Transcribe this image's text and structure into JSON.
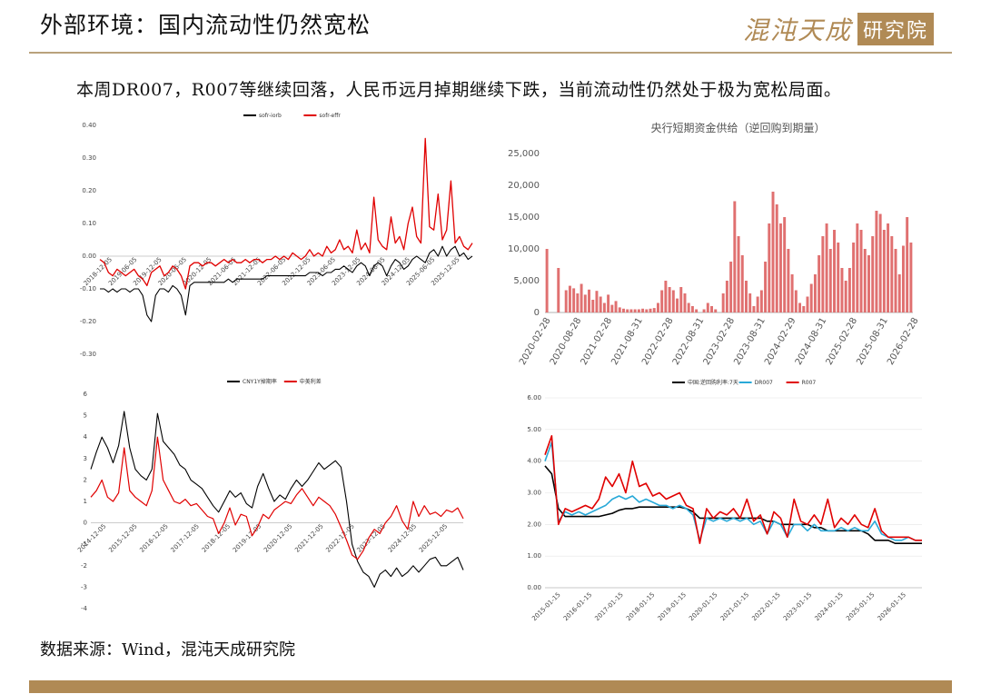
{
  "header": {
    "title": "外部环境：国内流动性仍然宽松",
    "logo_text": "混沌天成",
    "logo_box": "研究院"
  },
  "headline": "本周DR007，R007等继续回落，人民币远月掉期继续下跌，当前流动性仍然处于极为宽松局面。",
  "footnote": "数据来源：Wind，混沌天成研究院",
  "colors": {
    "accent": "#b08a55",
    "red": "#e00000",
    "black": "#000000",
    "cyan": "#29a9d8",
    "bar": "#e07070"
  },
  "chart_data": [
    {
      "type": "line",
      "legend": [
        "sofr-iorb",
        "sofr-effr"
      ],
      "yticks": [
        "0.40",
        "0.30",
        "0.20",
        "0.10",
        "0.00",
        "-0.10",
        "-0.20",
        "-0.30"
      ],
      "ylim": [
        -0.3,
        0.4
      ],
      "xticks": [
        "2018-12-05",
        "2019-06-05",
        "2019-12-05",
        "2020-06-05",
        "2020-12-05",
        "2021-06-05",
        "2021-12-05",
        "2022-06-05",
        "2022-12-05",
        "2023-06-05",
        "2023-12-05",
        "2024-06-05",
        "2024-12-05",
        "2025-06-05",
        "2025-12-05"
      ],
      "series": [
        {
          "name": "sofr-iorb",
          "values": [
            -0.1,
            -0.1,
            -0.11,
            -0.1,
            -0.11,
            -0.1,
            -0.1,
            -0.11,
            -0.1,
            -0.1,
            -0.12,
            -0.18,
            -0.2,
            -0.12,
            -0.1,
            -0.1,
            -0.11,
            -0.09,
            -0.1,
            -0.12,
            -0.18,
            -0.09,
            -0.08,
            -0.08,
            -0.08,
            -0.08,
            -0.08,
            -0.08,
            -0.08,
            -0.08,
            -0.07,
            -0.08,
            -0.07,
            -0.07,
            -0.07,
            -0.07,
            -0.07,
            -0.07,
            -0.07,
            -0.06,
            -0.06,
            -0.06,
            -0.06,
            -0.06,
            -0.06,
            -0.06,
            -0.06,
            -0.06,
            -0.06,
            -0.05,
            -0.05,
            -0.05,
            -0.06,
            -0.05,
            -0.05,
            -0.04,
            -0.04,
            -0.03,
            -0.04,
            -0.05,
            -0.03,
            -0.02,
            -0.03,
            -0.06,
            -0.03,
            -0.02,
            -0.03,
            -0.06,
            -0.03,
            -0.01,
            -0.02,
            -0.04,
            -0.03,
            -0.01,
            0.0,
            -0.01,
            -0.02,
            0.01,
            0.02,
            0.0,
            0.03,
            0.0,
            0.02,
            0.03,
            0.0,
            0.01,
            -0.01,
            0.0
          ]
        },
        {
          "name": "sofr-effr",
          "values": [
            -0.01,
            -0.02,
            -0.05,
            -0.06,
            -0.04,
            -0.05,
            -0.06,
            -0.05,
            -0.04,
            -0.06,
            -0.07,
            -0.09,
            -0.05,
            -0.04,
            -0.03,
            -0.06,
            -0.05,
            -0.03,
            -0.04,
            -0.06,
            -0.1,
            -0.03,
            -0.02,
            -0.02,
            -0.03,
            -0.02,
            -0.02,
            -0.03,
            -0.02,
            -0.01,
            -0.02,
            -0.01,
            -0.02,
            -0.02,
            -0.01,
            -0.02,
            -0.01,
            -0.01,
            -0.02,
            -0.01,
            -0.01,
            0.0,
            -0.01,
            0.0,
            -0.01,
            0.01,
            0.0,
            -0.01,
            0.0,
            0.02,
            0.0,
            0.01,
            0.0,
            0.03,
            0.01,
            0.02,
            0.05,
            0.02,
            0.03,
            0.01,
            0.08,
            0.02,
            0.04,
            0.01,
            0.18,
            0.05,
            0.03,
            0.02,
            0.12,
            0.04,
            0.06,
            0.02,
            0.1,
            0.15,
            0.06,
            0.04,
            0.36,
            0.09,
            0.08,
            0.19,
            0.05,
            0.08,
            0.23,
            0.04,
            0.06,
            0.03,
            0.02,
            0.04
          ]
        }
      ]
    },
    {
      "type": "bar",
      "title": "央行短期资金供给（逆回购到期量）",
      "yticks": [
        "25,000",
        "20,000",
        "15,000",
        "10,000",
        "5,000",
        "0"
      ],
      "ylim": [
        0,
        25000
      ],
      "xticks": [
        "2020-02-28",
        "2020-08-28",
        "2021-02-28",
        "2021-08-31",
        "2022-02-28",
        "2022-08-31",
        "2023-02-28",
        "2023-08-31",
        "2024-02-29",
        "2024-08-31",
        "2025-02-28",
        "2025-08-31",
        "2026-02-28"
      ],
      "values": [
        10000,
        0,
        0,
        7000,
        0,
        3500,
        4200,
        3800,
        3000,
        4500,
        2800,
        3600,
        2000,
        3400,
        2500,
        1500,
        2800,
        1200,
        1800,
        800,
        600,
        500,
        500,
        500,
        500,
        600,
        500,
        600,
        700,
        1500,
        3500,
        5000,
        4000,
        3500,
        2200,
        4000,
        3000,
        1500,
        1000,
        500,
        0,
        500,
        1500,
        1000,
        500,
        0,
        3000,
        5000,
        8000,
        17500,
        12000,
        9000,
        5000,
        3000,
        1000,
        2500,
        3500,
        8000,
        14000,
        19000,
        17000,
        14000,
        15000,
        10000,
        6000,
        3500,
        1500,
        1000,
        2500,
        4500,
        6000,
        9000,
        12000,
        14000,
        10000,
        13000,
        11000,
        7000,
        5000,
        7000,
        11000,
        14000,
        13000,
        10000,
        9000,
        12000,
        16000,
        15500,
        13000,
        14000,
        12000,
        10000,
        6000,
        10500,
        15000,
        11000
      ]
    },
    {
      "type": "line",
      "legend": [
        "CNY1Y掉期率",
        "中美利差"
      ],
      "yticks": [
        "6",
        "5",
        "4",
        "3",
        "2",
        "1",
        "0",
        "-1",
        "-2",
        "-3",
        "-4"
      ],
      "ylim": [
        -4,
        6
      ],
      "xticks": [
        "2014-12-05",
        "2015-12-05",
        "2016-12-05",
        "2017-12-05",
        "2018-12-05",
        "2019-12-05",
        "2020-12-05",
        "2021-12-05",
        "2022-12-05",
        "2023-12-05",
        "2024-12-05",
        "2025-12-05"
      ],
      "series": [
        {
          "name": "CNY1Y掉期率",
          "values": [
            2.5,
            3.3,
            4.0,
            3.5,
            2.8,
            3.6,
            5.2,
            3.5,
            2.5,
            2.2,
            2.0,
            2.5,
            5.1,
            3.8,
            3.5,
            3.2,
            2.7,
            2.5,
            2.0,
            1.8,
            1.6,
            1.2,
            0.8,
            0.5,
            1.0,
            1.5,
            1.2,
            1.4,
            0.9,
            0.7,
            1.7,
            2.3,
            1.6,
            1.0,
            1.3,
            1.1,
            1.6,
            2.0,
            1.7,
            2.0,
            2.4,
            2.8,
            2.5,
            2.7,
            2.9,
            2.6,
            1.0,
            -1.0,
            -1.8,
            -2.3,
            -2.5,
            -3.0,
            -2.4,
            -2.2,
            -2.5,
            -2.1,
            -2.5,
            -2.3,
            -2.0,
            -2.3,
            -2.0,
            -1.7,
            -1.6,
            -2.0,
            -2.0,
            -1.8,
            -1.6,
            -2.2
          ]
        },
        {
          "name": "中美利差",
          "values": [
            1.2,
            1.5,
            2.0,
            1.2,
            1.0,
            1.4,
            3.5,
            1.5,
            1.2,
            1.0,
            0.8,
            1.5,
            4.0,
            2.0,
            1.5,
            1.0,
            0.9,
            1.1,
            0.8,
            0.9,
            0.6,
            0.3,
            0.2,
            -0.5,
            0.0,
            0.7,
            -0.1,
            0.4,
            0.3,
            -0.6,
            -0.2,
            0.4,
            0.2,
            0.6,
            0.8,
            1.0,
            0.9,
            1.3,
            1.6,
            1.2,
            0.8,
            1.2,
            1.0,
            0.8,
            0.4,
            -0.2,
            -0.8,
            -1.5,
            -1.7,
            -1.3,
            -0.7,
            -0.3,
            -0.5,
            0.0,
            0.3,
            0.8,
            0.1,
            -0.3,
            1.0,
            0.3,
            0.8,
            0.4,
            0.5,
            0.3,
            0.6,
            0.5,
            0.7,
            0.2
          ]
        }
      ]
    },
    {
      "type": "line",
      "legend": [
        "中国:逆回购利率:7天",
        "DR007",
        "R007"
      ],
      "yticks": [
        "6.00",
        "5.00",
        "4.00",
        "3.00",
        "2.00",
        "1.00",
        "0.00"
      ],
      "ylim": [
        0,
        6
      ],
      "xticks": [
        "2015-01-15",
        "2016-01-15",
        "2017-01-15",
        "2018-01-15",
        "2019-01-15",
        "2020-01-15",
        "2021-01-15",
        "2022-01-15",
        "2023-01-15",
        "2024-01-15",
        "2025-01-15",
        "2026-01-15"
      ],
      "series": [
        {
          "name": "中国:逆回购利率:7天",
          "values": [
            3.85,
            3.6,
            2.5,
            2.25,
            2.25,
            2.25,
            2.25,
            2.25,
            2.25,
            2.3,
            2.35,
            2.45,
            2.5,
            2.5,
            2.55,
            2.55,
            2.55,
            2.55,
            2.55,
            2.55,
            2.55,
            2.5,
            2.4,
            2.2,
            2.2,
            2.2,
            2.2,
            2.2,
            2.2,
            2.2,
            2.2,
            2.2,
            2.2,
            2.1,
            2.1,
            2.0,
            2.0,
            2.0,
            2.0,
            2.0,
            1.9,
            1.9,
            1.8,
            1.8,
            1.8,
            1.8,
            1.8,
            1.8,
            1.7,
            1.5,
            1.5,
            1.5,
            1.4,
            1.4,
            1.4,
            1.4,
            1.4
          ]
        },
        {
          "name": "DR007",
          "values": [
            4.0,
            4.6,
            2.1,
            2.4,
            2.3,
            2.4,
            2.3,
            2.4,
            2.5,
            2.6,
            2.8,
            2.9,
            2.8,
            2.9,
            2.7,
            2.8,
            2.7,
            2.6,
            2.6,
            2.5,
            2.6,
            2.5,
            2.3,
            1.5,
            2.2,
            2.1,
            2.2,
            2.1,
            2.2,
            2.1,
            2.2,
            2.0,
            2.1,
            1.7,
            2.1,
            2.0,
            1.6,
            2.0,
            2.0,
            1.8,
            2.0,
            1.8,
            1.8,
            1.8,
            1.9,
            1.8,
            1.9,
            1.8,
            1.8,
            2.1,
            1.7,
            1.6,
            1.5,
            1.5,
            1.6,
            1.5,
            1.5
          ]
        },
        {
          "name": "R007",
          "values": [
            4.2,
            4.8,
            2.0,
            2.5,
            2.4,
            2.5,
            2.6,
            2.5,
            2.8,
            3.5,
            3.2,
            3.6,
            3.0,
            4.0,
            3.2,
            3.3,
            2.9,
            3.0,
            2.8,
            2.9,
            3.0,
            2.6,
            2.5,
            1.4,
            2.5,
            2.2,
            2.4,
            2.3,
            2.5,
            2.2,
            2.8,
            2.1,
            2.3,
            1.7,
            2.4,
            2.2,
            1.6,
            2.8,
            2.1,
            2.0,
            2.3,
            2.0,
            2.8,
            1.9,
            2.2,
            2.0,
            2.3,
            2.0,
            1.9,
            2.5,
            1.8,
            1.6,
            1.6,
            1.6,
            1.6,
            1.5,
            1.5
          ]
        }
      ]
    }
  ]
}
